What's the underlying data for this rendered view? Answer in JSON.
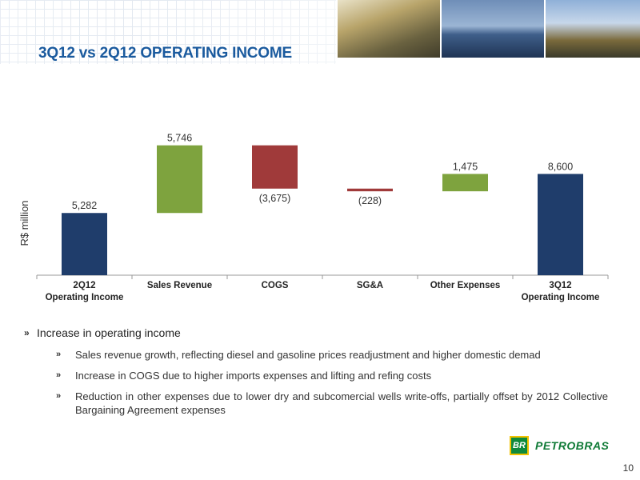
{
  "header": {
    "title": "3Q12 vs 2Q12 OPERATING INCOME"
  },
  "colors": {
    "title": "#1a5a9e",
    "start_end": "#1f3d6b",
    "increase": "#7ea33e",
    "decrease": "#a03a3a"
  },
  "chart_data": {
    "type": "bar",
    "subtype": "waterfall",
    "title": "",
    "xlabel": "",
    "ylabel": "R$ million",
    "categories": [
      "2Q12\nOperating Income",
      "Sales Revenue",
      "COGS",
      "SG&A",
      "Other Expenses",
      "3Q12\nOperating Income"
    ],
    "values": [
      5282,
      5746,
      -3675,
      -228,
      1475,
      8600
    ],
    "kinds": [
      "total",
      "increase",
      "decrease",
      "decrease",
      "increase",
      "total"
    ],
    "data_labels": [
      "5,282",
      "5,746",
      "(3,675)",
      "(228)",
      "1,475",
      "8,600"
    ],
    "ylim": [
      0,
      11500
    ],
    "grid": false,
    "legend": "none"
  },
  "bullets": {
    "main": "Increase in operating income",
    "subs": [
      "Sales revenue growth, reflecting diesel and gasoline prices readjustment and higher domestic demad",
      "Increase in COGS due to higher imports expenses and lifting and refing costs",
      "Reduction in other expenses due to lower dry and subcomercial wells write-offs, partially offset by 2012 Collective Bargaining Agreement expenses"
    ]
  },
  "logo": {
    "mark": "BR",
    "name": "PETROBRAS"
  },
  "page": {
    "number": "10"
  }
}
